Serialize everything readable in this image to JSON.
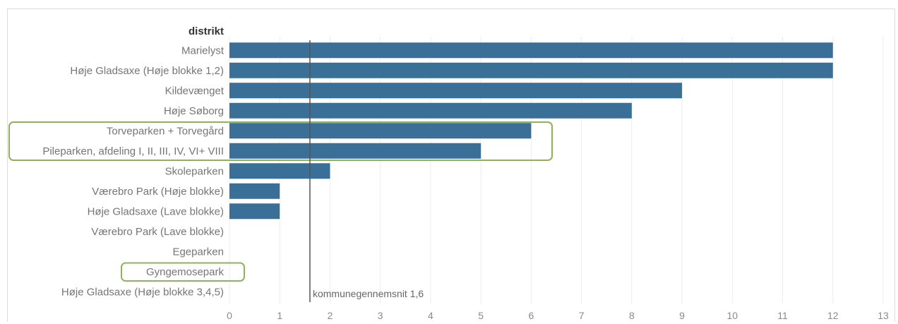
{
  "chart_data": {
    "type": "bar",
    "orientation": "horizontal",
    "ylabel": "distrikt",
    "categories": [
      "Marielyst",
      "Høje Gladsaxe (Høje blokke 1,2)",
      "Kildevænget",
      "Høje Søborg",
      "Torveparken + Torvegård",
      "Pileparken, afdeling I, II, III, IV, VI+ VIII",
      "Skoleparken",
      "Værebro Park (Høje blokke)",
      "Høje Gladsaxe (Lave blokke)",
      "Værebro Park (Lave blokke)",
      "Egeparken",
      "Gyngemosepark",
      "Høje Gladsaxe (Høje blokke 3,4,5)"
    ],
    "values": [
      12,
      12,
      9,
      8,
      6,
      5,
      2,
      1,
      1,
      0,
      0,
      0,
      0
    ],
    "xlim": [
      0,
      13
    ],
    "xticks": [
      "0",
      "1",
      "2",
      "3",
      "4",
      "5",
      "6",
      "7",
      "8",
      "9",
      "10",
      "11",
      "12",
      "13"
    ],
    "reference_line": {
      "value": 1.6,
      "label": "kommunegennemsnit 1,6"
    },
    "highlighted_categories": [
      "Torveparken + Torvegård",
      "Pileparken, afdeling I, II, III, IV, VI+ VIII",
      "Gyngemosepark"
    ],
    "colors": {
      "bar": "#3a6f98",
      "highlight": "#8db35c",
      "reference": "#555555"
    }
  }
}
